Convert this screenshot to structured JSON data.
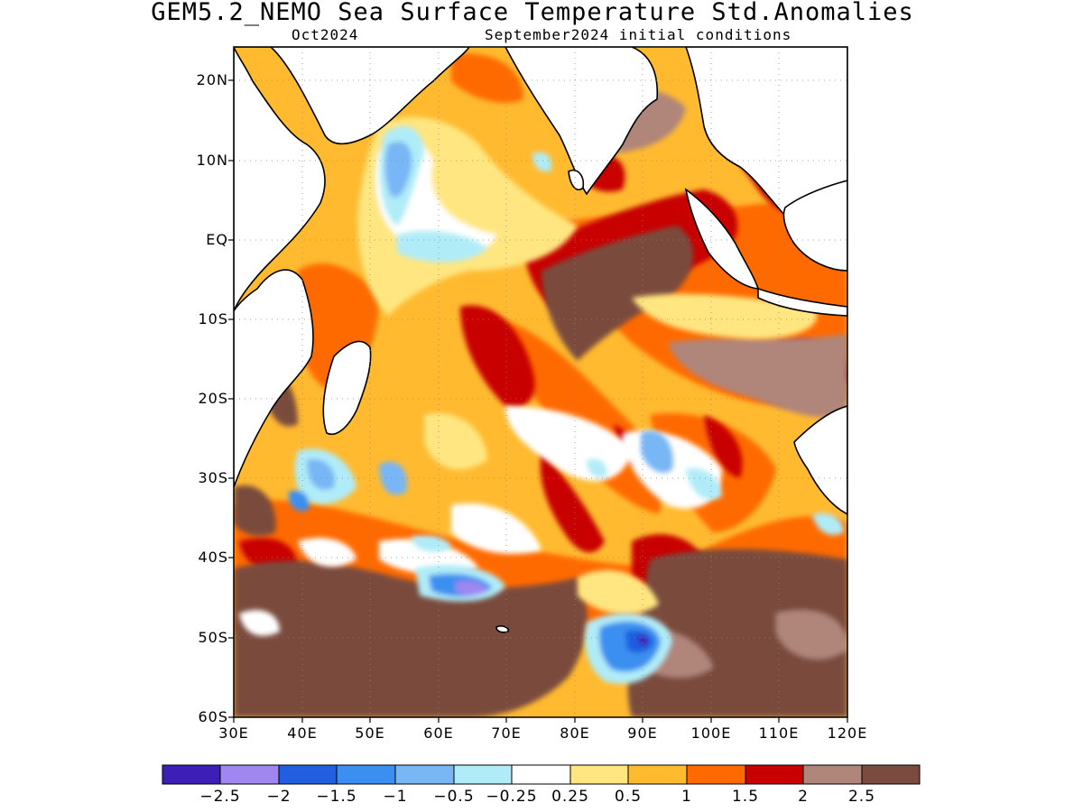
{
  "title": "GEM5.2_NEMO Sea Surface Temperature Std.Anomalies",
  "subtitle_left": "Oct2024",
  "subtitle_right": "September2024 initial conditions",
  "map": {
    "region": "Indian Ocean",
    "lon_range": [
      30,
      120
    ],
    "lat_range": [
      -60,
      24
    ],
    "lat_ticks": [
      {
        "value": 20,
        "label": "20N"
      },
      {
        "value": 10,
        "label": "10N"
      },
      {
        "value": 0,
        "label": "EQ"
      },
      {
        "value": -10,
        "label": "10S"
      },
      {
        "value": -20,
        "label": "20S"
      },
      {
        "value": -30,
        "label": "30S"
      },
      {
        "value": -40,
        "label": "40S"
      },
      {
        "value": -50,
        "label": "50S"
      },
      {
        "value": -60,
        "label": "60S"
      }
    ],
    "lon_ticks": [
      {
        "value": 30,
        "label": "30E"
      },
      {
        "value": 40,
        "label": "40E"
      },
      {
        "value": 50,
        "label": "50E"
      },
      {
        "value": 60,
        "label": "60E"
      },
      {
        "value": 70,
        "label": "70E"
      },
      {
        "value": 80,
        "label": "80E"
      },
      {
        "value": 90,
        "label": "90E"
      },
      {
        "value": 100,
        "label": "100E"
      },
      {
        "value": 110,
        "label": "110E"
      },
      {
        "value": 120,
        "label": "120E"
      }
    ],
    "grid": "dotted"
  },
  "colorbar": {
    "colors": [
      "#3d1fb8",
      "#9f86f0",
      "#1f5fe0",
      "#3b8ff0",
      "#78b6f5",
      "#b0ecf8",
      "#ffffff",
      "#ffe680",
      "#ffba30",
      "#ff6a00",
      "#c80000",
      "#b0857a",
      "#7a4b3e"
    ],
    "labels": [
      "−2.5",
      "−2",
      "−1.5",
      "−1",
      "−0.5",
      "−0.25",
      "0.25",
      "0.5",
      "1",
      "1.5",
      "2",
      "2.5"
    ]
  }
}
